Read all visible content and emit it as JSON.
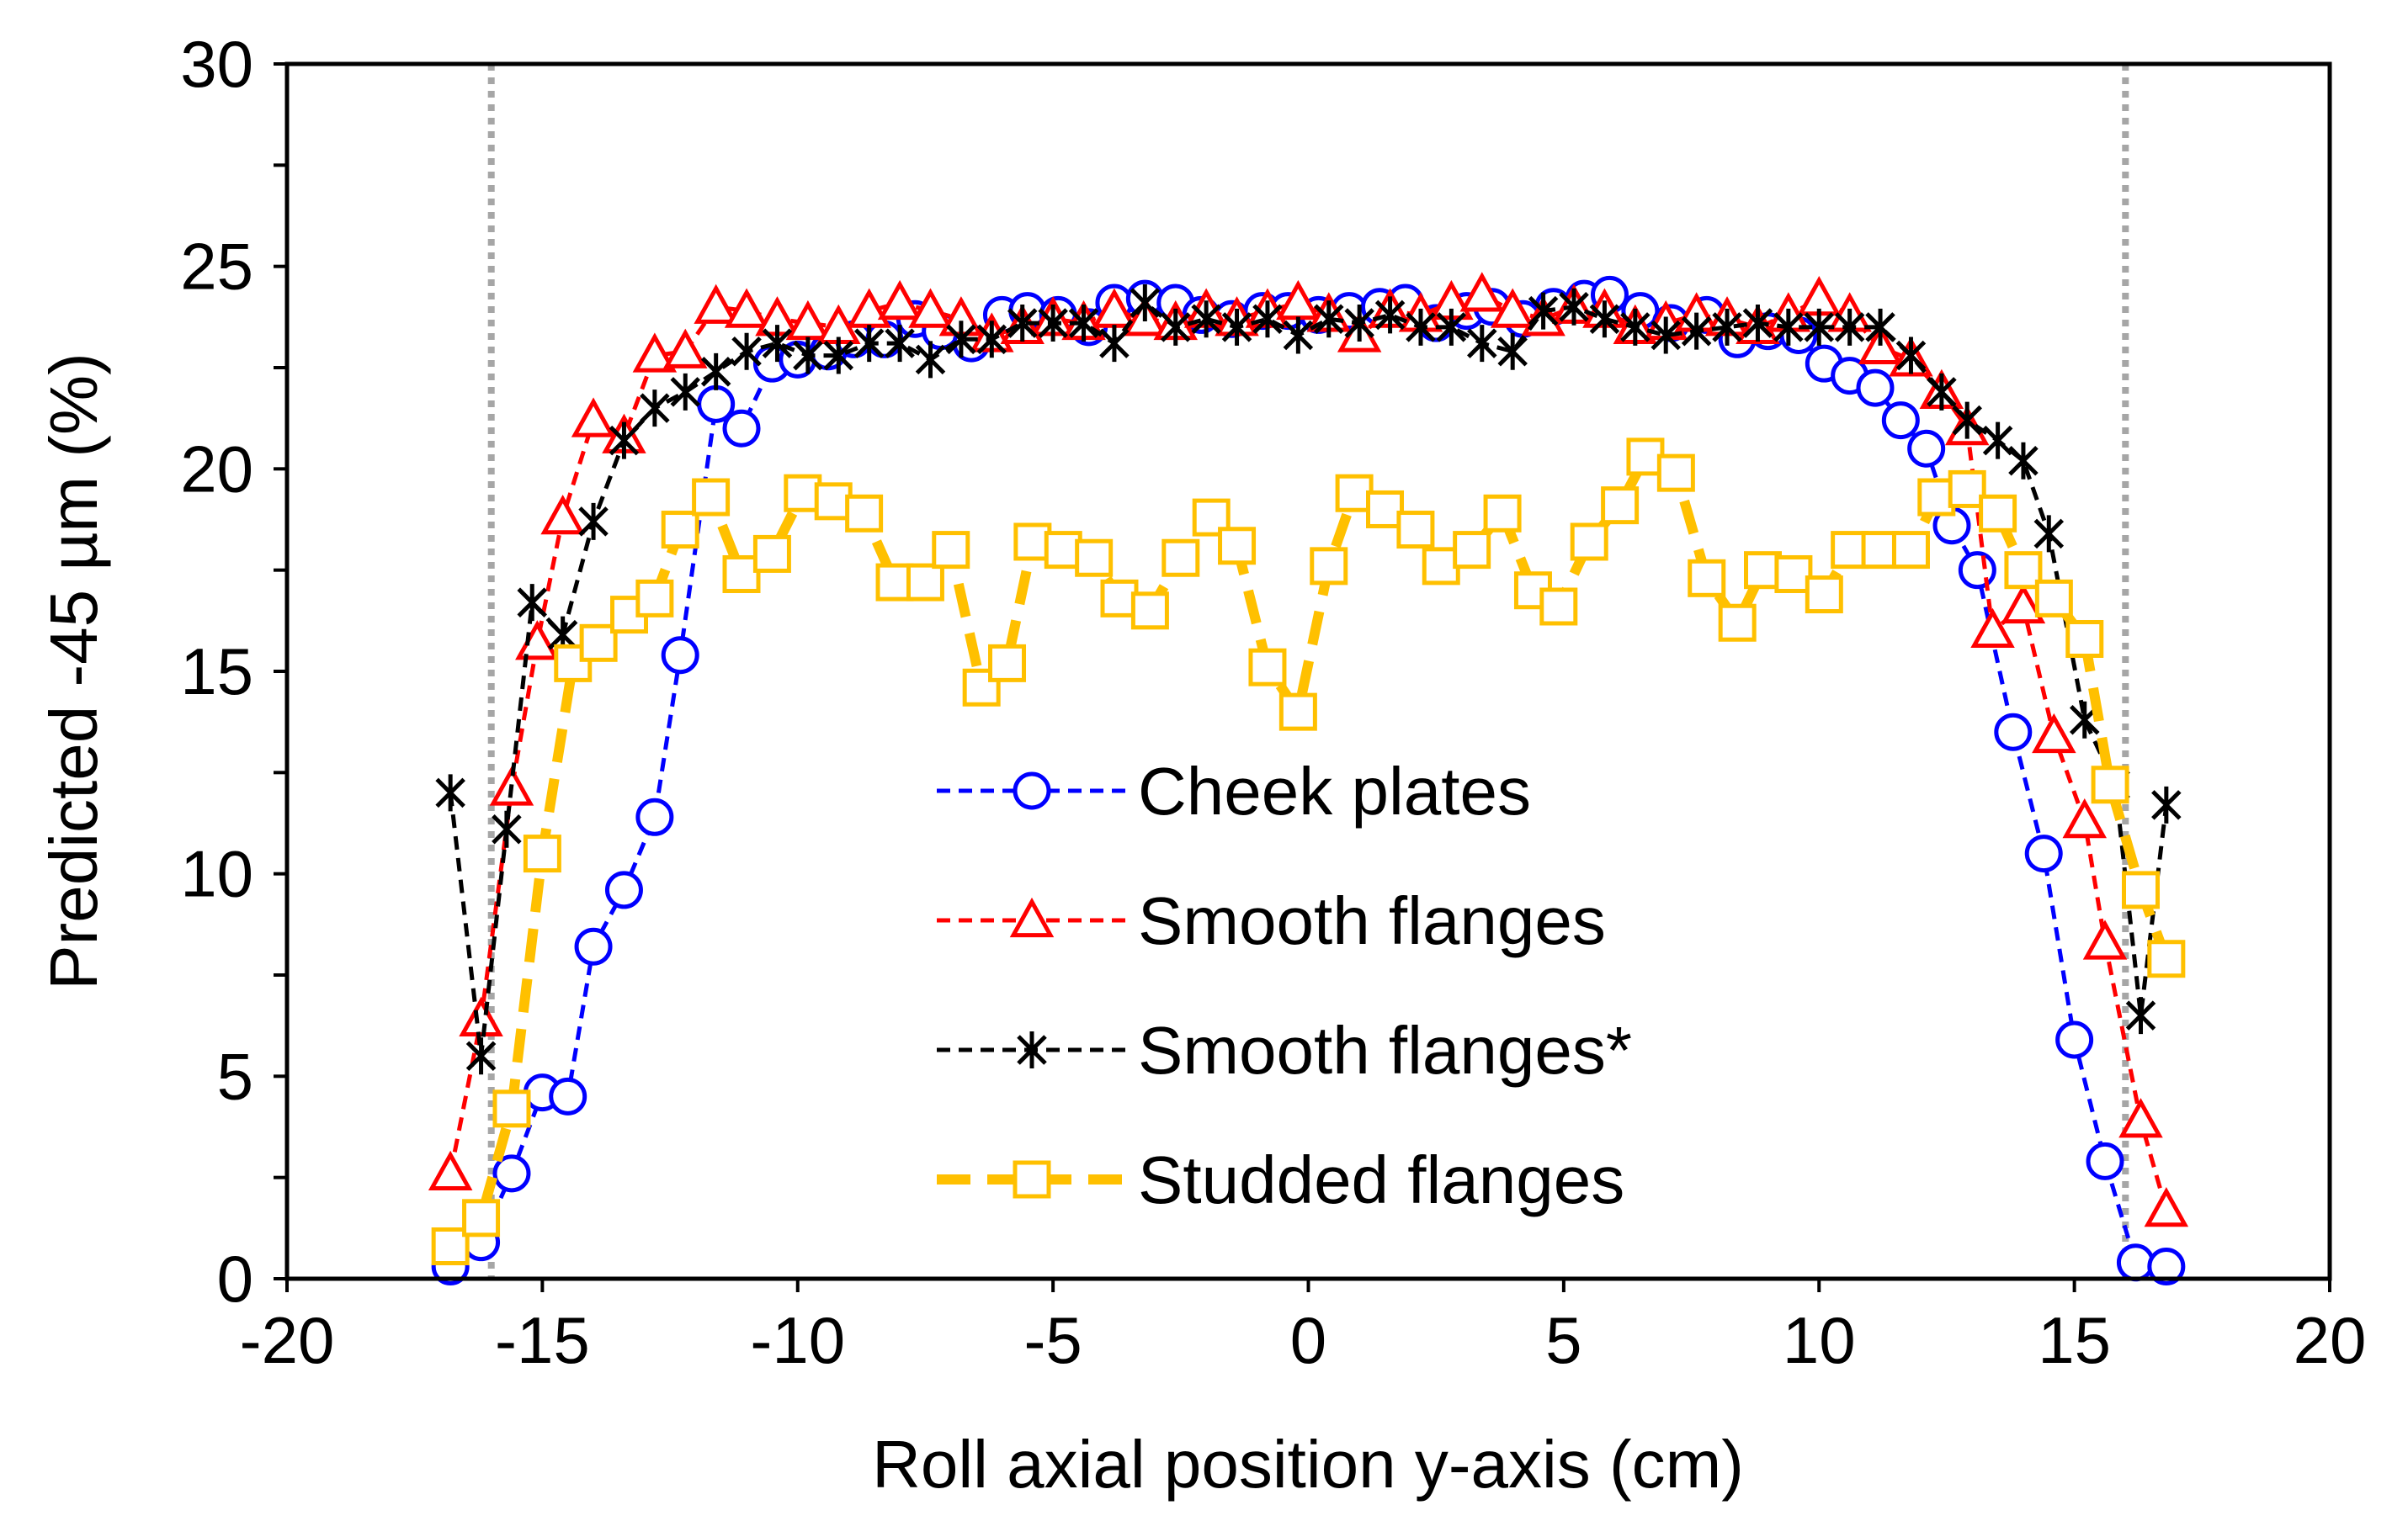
{
  "chart_data": {
    "type": "line",
    "title": "",
    "xlabel": "Roll axial position y-axis (cm)",
    "ylabel": "Predicted -45 µm (%)",
    "xlim": [
      -20,
      20
    ],
    "ylim": [
      0,
      30
    ],
    "xticks": [
      -20,
      -15,
      -10,
      -5,
      0,
      5,
      10,
      15,
      20
    ],
    "yticks": [
      0,
      5,
      10,
      15,
      20,
      25,
      30
    ],
    "xtick_labels": [
      "-20",
      "-15",
      "-10",
      "-5",
      "0",
      "5",
      "10",
      "15",
      "20"
    ],
    "ytick_labels": [
      "0",
      "5",
      "10",
      "15",
      "20",
      "25",
      "30"
    ],
    "vlines": [
      -16,
      16
    ],
    "legend_position": "center",
    "series": [
      {
        "name": "Cheek plates",
        "color": "#0000FF",
        "marker": "circle",
        "dash": "short",
        "width": 5,
        "points": [
          [
            -16.8,
            0.3
          ],
          [
            -16.2,
            0.9
          ],
          [
            -15.6,
            2.6
          ],
          [
            -15.0,
            4.6
          ],
          [
            -14.5,
            4.5
          ],
          [
            -14.0,
            8.2
          ],
          [
            -13.4,
            9.6
          ],
          [
            -12.8,
            11.4
          ],
          [
            -12.3,
            15.4
          ],
          [
            -11.6,
            21.6
          ],
          [
            -11.1,
            21.0
          ],
          [
            -10.5,
            22.6
          ],
          [
            -10.0,
            22.7
          ],
          [
            -9.4,
            22.9
          ],
          [
            -8.9,
            23.2
          ],
          [
            -8.3,
            23.2
          ],
          [
            -7.7,
            23.7
          ],
          [
            -7.2,
            23.4
          ],
          [
            -6.6,
            23.1
          ],
          [
            -6.0,
            23.8
          ],
          [
            -5.5,
            23.9
          ],
          [
            -4.9,
            23.8
          ],
          [
            -4.3,
            23.5
          ],
          [
            -3.8,
            24.1
          ],
          [
            -3.2,
            24.2
          ],
          [
            -2.6,
            24.1
          ],
          [
            -2.1,
            23.8
          ],
          [
            -1.5,
            23.7
          ],
          [
            -0.9,
            23.9
          ],
          [
            -0.4,
            23.9
          ],
          [
            0.2,
            23.8
          ],
          [
            0.8,
            23.9
          ],
          [
            1.4,
            24.0
          ],
          [
            1.9,
            24.1
          ],
          [
            2.5,
            23.6
          ],
          [
            3.1,
            23.9
          ],
          [
            3.6,
            24.0
          ],
          [
            4.2,
            23.7
          ],
          [
            4.8,
            24.0
          ],
          [
            5.4,
            24.2
          ],
          [
            5.9,
            24.3
          ],
          [
            6.5,
            23.9
          ],
          [
            7.1,
            23.6
          ],
          [
            7.8,
            23.8
          ],
          [
            8.4,
            23.2
          ],
          [
            9.0,
            23.4
          ],
          [
            9.6,
            23.3
          ],
          [
            10.1,
            22.6
          ],
          [
            10.6,
            22.3
          ],
          [
            11.1,
            22.0
          ],
          [
            11.6,
            21.2
          ],
          [
            12.1,
            20.5
          ],
          [
            12.6,
            18.6
          ],
          [
            13.1,
            17.5
          ],
          [
            13.8,
            13.5
          ],
          [
            14.4,
            10.5
          ],
          [
            15.0,
            5.9
          ],
          [
            15.6,
            2.9
          ],
          [
            16.2,
            0.4
          ],
          [
            16.8,
            0.3
          ]
        ]
      },
      {
        "name": "Smooth flanges",
        "color": "#FF0000",
        "marker": "triangle",
        "dash": "short",
        "width": 5,
        "points": [
          [
            -16.8,
            2.6
          ],
          [
            -16.2,
            6.4
          ],
          [
            -15.6,
            12.1
          ],
          [
            -15.1,
            15.7
          ],
          [
            -14.6,
            18.8
          ],
          [
            -14.0,
            21.2
          ],
          [
            -13.4,
            20.8
          ],
          [
            -12.8,
            22.8
          ],
          [
            -12.2,
            22.9
          ],
          [
            -11.6,
            24.0
          ],
          [
            -11.0,
            23.9
          ],
          [
            -10.4,
            23.7
          ],
          [
            -9.8,
            23.6
          ],
          [
            -9.2,
            23.5
          ],
          [
            -8.6,
            23.9
          ],
          [
            -8.0,
            24.1
          ],
          [
            -7.4,
            23.9
          ],
          [
            -6.8,
            23.7
          ],
          [
            -6.2,
            23.3
          ],
          [
            -5.6,
            23.5
          ],
          [
            -5.0,
            23.7
          ],
          [
            -4.4,
            23.6
          ],
          [
            -3.8,
            23.9
          ],
          [
            -3.2,
            23.7
          ],
          [
            -2.6,
            23.6
          ],
          [
            -2.0,
            23.9
          ],
          [
            -1.4,
            23.7
          ],
          [
            -0.8,
            23.9
          ],
          [
            -0.2,
            24.1
          ],
          [
            0.4,
            23.8
          ],
          [
            1.0,
            23.3
          ],
          [
            1.6,
            23.9
          ],
          [
            2.2,
            23.8
          ],
          [
            2.8,
            24.1
          ],
          [
            3.4,
            24.3
          ],
          [
            4.0,
            23.9
          ],
          [
            4.6,
            23.7
          ],
          [
            5.2,
            24.0
          ],
          [
            5.8,
            23.9
          ],
          [
            6.4,
            23.5
          ],
          [
            7.0,
            23.6
          ],
          [
            7.6,
            23.8
          ],
          [
            8.2,
            23.7
          ],
          [
            8.8,
            23.5
          ],
          [
            9.4,
            23.8
          ],
          [
            10.0,
            24.2
          ],
          [
            10.6,
            23.8
          ],
          [
            11.2,
            23.0
          ],
          [
            11.8,
            22.7
          ],
          [
            12.4,
            21.9
          ],
          [
            12.9,
            21.0
          ],
          [
            13.4,
            16.0
          ],
          [
            14.0,
            16.6
          ],
          [
            14.6,
            13.4
          ],
          [
            15.2,
            11.3
          ],
          [
            15.6,
            8.3
          ],
          [
            16.3,
            3.9
          ],
          [
            16.8,
            1.7
          ]
        ]
      },
      {
        "name": "Smooth flanges*",
        "color": "#000000",
        "marker": "asterisk",
        "dash": "short",
        "width": 5,
        "points": [
          [
            -16.8,
            12.0
          ],
          [
            -16.2,
            5.5
          ],
          [
            -15.7,
            11.1
          ],
          [
            -15.2,
            16.7
          ],
          [
            -14.6,
            15.9
          ],
          [
            -14.0,
            18.7
          ],
          [
            -13.4,
            20.7
          ],
          [
            -12.8,
            21.5
          ],
          [
            -12.2,
            21.9
          ],
          [
            -11.6,
            22.4
          ],
          [
            -11.0,
            22.9
          ],
          [
            -10.4,
            23.1
          ],
          [
            -9.8,
            22.8
          ],
          [
            -9.2,
            22.8
          ],
          [
            -8.6,
            23.1
          ],
          [
            -8.0,
            23.1
          ],
          [
            -7.4,
            22.7
          ],
          [
            -6.8,
            23.2
          ],
          [
            -6.2,
            23.2
          ],
          [
            -5.6,
            23.6
          ],
          [
            -5.0,
            23.6
          ],
          [
            -4.4,
            23.6
          ],
          [
            -3.8,
            23.1
          ],
          [
            -3.2,
            24.1
          ],
          [
            -2.6,
            23.5
          ],
          [
            -2.0,
            23.7
          ],
          [
            -1.4,
            23.5
          ],
          [
            -0.8,
            23.7
          ],
          [
            -0.2,
            23.3
          ],
          [
            0.4,
            23.7
          ],
          [
            1.0,
            23.6
          ],
          [
            1.6,
            23.8
          ],
          [
            2.2,
            23.5
          ],
          [
            2.8,
            23.5
          ],
          [
            3.4,
            23.1
          ],
          [
            4.0,
            22.9
          ],
          [
            4.6,
            23.9
          ],
          [
            5.2,
            24.0
          ],
          [
            5.8,
            23.7
          ],
          [
            6.4,
            23.5
          ],
          [
            7.0,
            23.3
          ],
          [
            7.6,
            23.4
          ],
          [
            8.2,
            23.5
          ],
          [
            8.8,
            23.6
          ],
          [
            9.4,
            23.5
          ],
          [
            10.0,
            23.5
          ],
          [
            10.6,
            23.5
          ],
          [
            11.2,
            23.5
          ],
          [
            11.8,
            22.8
          ],
          [
            12.4,
            21.9
          ],
          [
            12.9,
            21.2
          ],
          [
            13.5,
            20.7
          ],
          [
            14.0,
            20.2
          ],
          [
            14.5,
            18.4
          ],
          [
            15.2,
            13.8
          ],
          [
            15.8,
            12.2
          ],
          [
            16.3,
            6.5
          ],
          [
            16.8,
            11.7
          ]
        ]
      },
      {
        "name": "Studded flanges",
        "color": "#FFC000",
        "marker": "square",
        "dash": "long",
        "width": 12,
        "points": [
          [
            -16.8,
            0.8
          ],
          [
            -16.2,
            1.5
          ],
          [
            -15.6,
            4.2
          ],
          [
            -15.0,
            10.5
          ],
          [
            -14.4,
            15.2
          ],
          [
            -13.9,
            15.7
          ],
          [
            -13.3,
            16.4
          ],
          [
            -12.8,
            16.8
          ],
          [
            -12.3,
            18.5
          ],
          [
            -11.7,
            19.3
          ],
          [
            -11.1,
            17.4
          ],
          [
            -10.5,
            17.9
          ],
          [
            -9.9,
            19.4
          ],
          [
            -9.3,
            19.2
          ],
          [
            -8.7,
            18.9
          ],
          [
            -8.1,
            17.2
          ],
          [
            -7.5,
            17.2
          ],
          [
            -7.0,
            18.0
          ],
          [
            -6.4,
            14.6
          ],
          [
            -5.9,
            15.2
          ],
          [
            -5.4,
            18.2
          ],
          [
            -4.8,
            18.0
          ],
          [
            -4.2,
            17.8
          ],
          [
            -3.7,
            16.8
          ],
          [
            -3.1,
            16.5
          ],
          [
            -2.5,
            17.8
          ],
          [
            -1.9,
            18.8
          ],
          [
            -1.4,
            18.1
          ],
          [
            -0.8,
            15.1
          ],
          [
            -0.2,
            14.0
          ],
          [
            0.4,
            17.6
          ],
          [
            0.9,
            19.4
          ],
          [
            1.5,
            19.0
          ],
          [
            2.1,
            18.5
          ],
          [
            2.6,
            17.6
          ],
          [
            3.2,
            18.0
          ],
          [
            3.8,
            18.9
          ],
          [
            4.4,
            17.0
          ],
          [
            4.9,
            16.6
          ],
          [
            5.5,
            18.2
          ],
          [
            6.1,
            19.1
          ],
          [
            6.6,
            20.3
          ],
          [
            7.2,
            19.9
          ],
          [
            7.8,
            17.3
          ],
          [
            8.4,
            16.2
          ],
          [
            8.9,
            17.5
          ],
          [
            9.5,
            17.4
          ],
          [
            10.1,
            16.9
          ],
          [
            10.6,
            18.0
          ],
          [
            11.2,
            18.0
          ],
          [
            11.8,
            18.0
          ],
          [
            12.3,
            19.3
          ],
          [
            12.9,
            19.5
          ],
          [
            13.5,
            18.9
          ],
          [
            14.0,
            17.5
          ],
          [
            14.6,
            16.8
          ],
          [
            15.2,
            15.8
          ],
          [
            15.7,
            12.2
          ],
          [
            16.3,
            9.6
          ],
          [
            16.8,
            7.9
          ]
        ]
      }
    ]
  }
}
